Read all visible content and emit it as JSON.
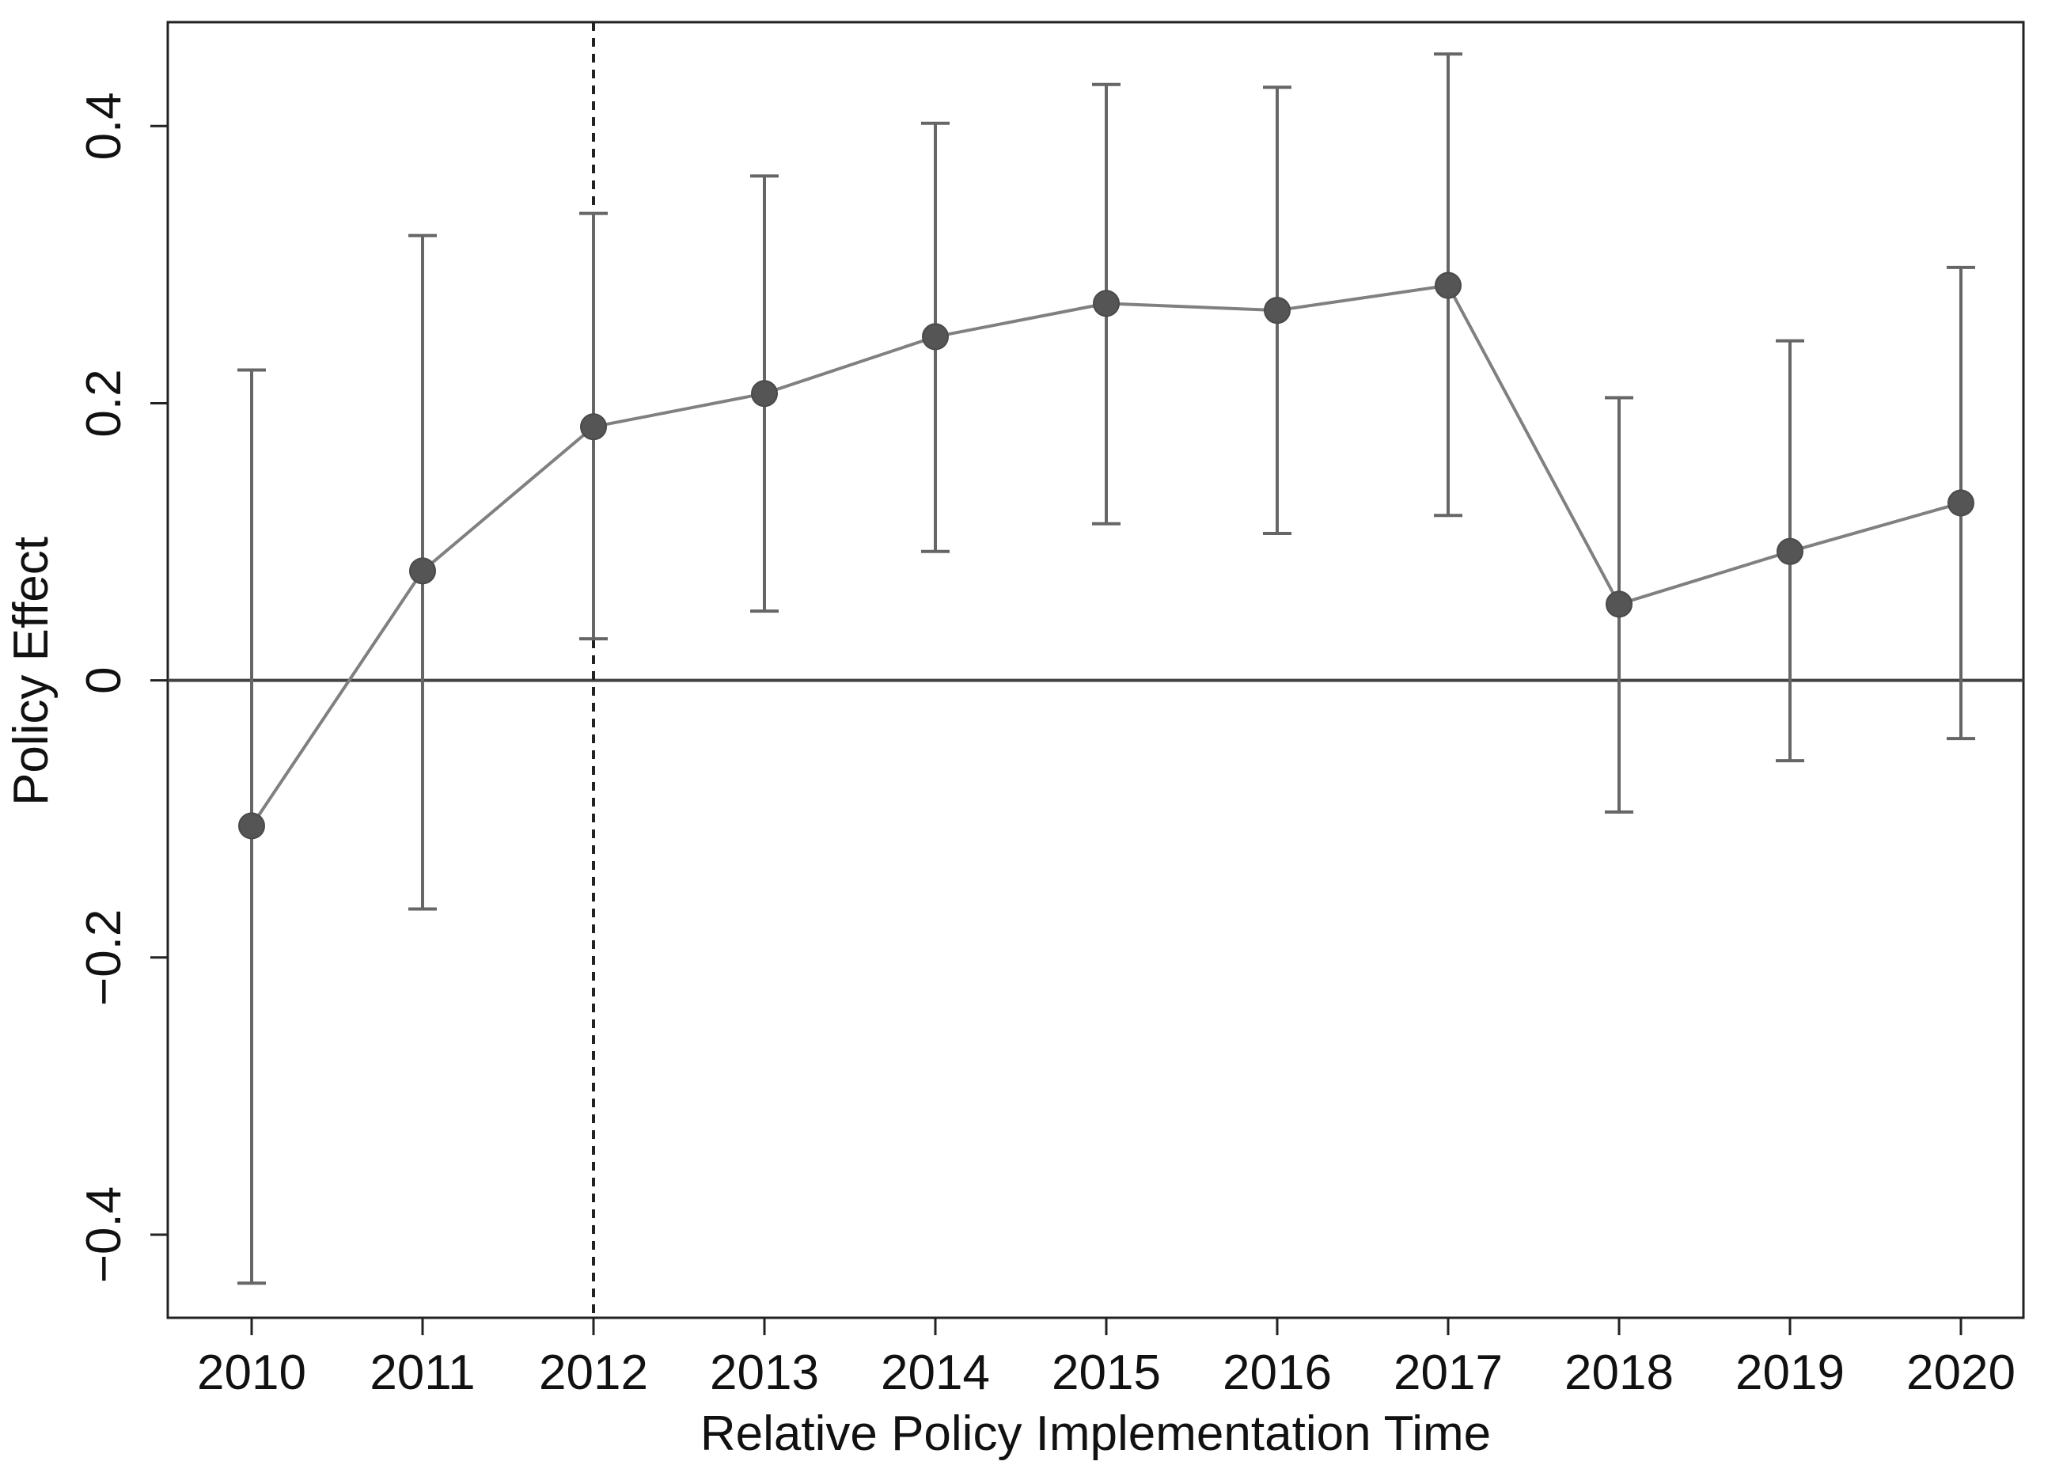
{
  "chart_data": {
    "type": "line",
    "xlabel": "Relative Policy Implementation Time",
    "ylabel": "Policy Effect",
    "categories": [
      "2010",
      "2011",
      "2012",
      "2013",
      "2014",
      "2015",
      "2016",
      "2017",
      "2018",
      "2019",
      "2020"
    ],
    "series": [
      {
        "values": [
          -0.105,
          0.079,
          0.183,
          0.207,
          0.248,
          0.272,
          0.267,
          0.285,
          0.055,
          0.093,
          0.128
        ],
        "ci_lower": [
          -0.435,
          -0.165,
          0.03,
          0.05,
          0.093,
          0.113,
          0.106,
          0.119,
          -0.095,
          -0.058,
          -0.042
        ],
        "ci_upper": [
          0.224,
          0.321,
          0.337,
          0.364,
          0.402,
          0.43,
          0.428,
          0.452,
          0.204,
          0.245,
          0.298
        ]
      }
    ],
    "ylim": [
      -0.46,
      0.475
    ],
    "yticks": [
      -0.4,
      -0.2,
      0,
      0.2,
      0.4
    ],
    "ytick_labels": [
      "−0.4",
      "−0.2",
      "0",
      "0.2",
      "0.4"
    ],
    "reference_lines": {
      "horizontal_y": 0,
      "vertical_dashed_x": "2012"
    },
    "grid": false,
    "colors": {
      "line": "#808080",
      "marker": "#555555",
      "error_bar": "#666666",
      "axis": "#222222"
    }
  }
}
